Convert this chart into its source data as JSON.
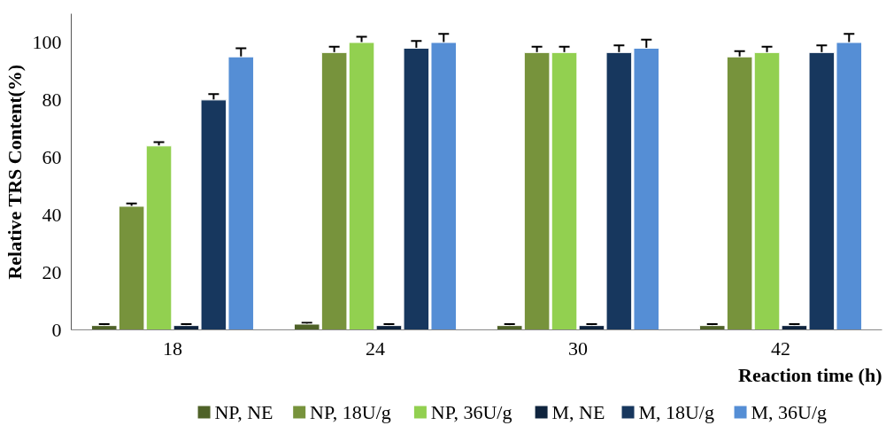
{
  "chart_data": {
    "type": "bar",
    "xlabel": "Reaction time (h)",
    "ylabel": "Relative TRS Content(%)",
    "categories": [
      "18",
      "24",
      "30",
      "42"
    ],
    "ylim": [
      0,
      110
    ],
    "yticks": [
      0,
      20,
      40,
      60,
      80,
      100
    ],
    "grid": false,
    "legend": "bottom",
    "series": [
      {
        "name": "NP, NE",
        "color": "#4f6228",
        "values": [
          1.5,
          2,
          1.5,
          1.5
        ],
        "errors": [
          0.5,
          0.5,
          0.5,
          0.5
        ]
      },
      {
        "name": "NP, 18U/g",
        "color": "#77933c",
        "values": [
          43,
          96.5,
          96.5,
          95
        ],
        "errors": [
          1,
          2,
          2,
          2
        ]
      },
      {
        "name": "NP, 36U/g",
        "color": "#92d050",
        "values": [
          64,
          100,
          96.5,
          96.5
        ],
        "errors": [
          1.3,
          2,
          2,
          2
        ]
      },
      {
        "name": "M, NE",
        "color": "#0f243e",
        "values": [
          1.5,
          1.5,
          1.5,
          1.5
        ],
        "errors": [
          0.5,
          0.5,
          0.5,
          0.5
        ]
      },
      {
        "name": "M, 18U/g",
        "color": "#17375e",
        "values": [
          80,
          98,
          96.5,
          96.5
        ],
        "errors": [
          2,
          2.5,
          2.5,
          2.5
        ]
      },
      {
        "name": "M, 36U/g",
        "color": "#558ed5",
        "values": [
          95,
          100,
          98,
          100
        ],
        "errors": [
          3,
          3,
          3,
          3
        ]
      }
    ]
  }
}
